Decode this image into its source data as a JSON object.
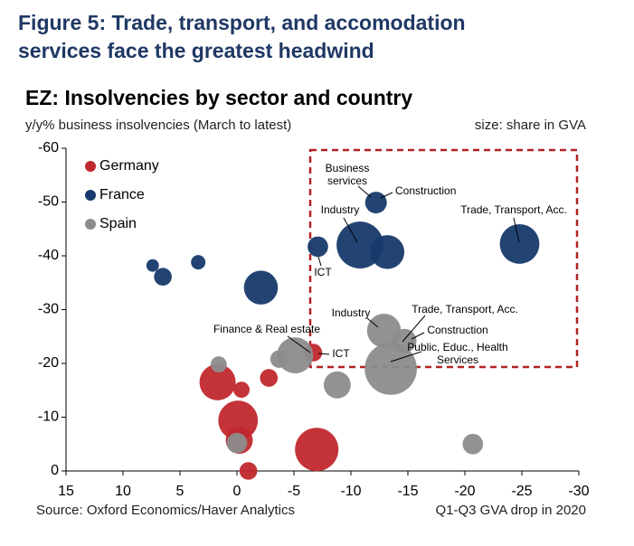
{
  "figure_title": [
    "Figure 5: Trade, transport, and accomodation",
    "services face the greatest headwind"
  ],
  "chart_data": {
    "type": "bubble",
    "title": "EZ: Insolvencies by sector and country",
    "y_label": "y/y% business insolvencies (March to latest)",
    "size_label": "size: share in GVA",
    "x_label": "Q1-Q3 GVA drop in 2020",
    "source": "Source: Oxford Economics/Haver Analytics",
    "xlim": [
      15,
      -30
    ],
    "ylim": [
      0,
      -60
    ],
    "xticks": [
      15,
      10,
      5,
      0,
      -5,
      -10,
      -15,
      -20,
      -25,
      -30
    ],
    "yticks": [
      -60,
      -50,
      -40,
      -30,
      -20,
      -10,
      0
    ],
    "legend": "top-left",
    "series": [
      {
        "name": "Germany",
        "color": "#c0282d",
        "x": [
          1.7,
          -0.1,
          -0.2,
          -0.4,
          -1.0,
          -2.8,
          -7.0,
          -6.7
        ],
        "values": [
          -16.5,
          -9.4,
          -5.7,
          -15.1,
          0,
          -17.3,
          -4.0,
          -22.0
        ],
        "sizes": [
          25,
          30,
          14,
          5,
          6,
          6,
          36,
          6
        ]
      },
      {
        "name": "France",
        "color": "#173a6c",
        "x": [
          7.4,
          6.5,
          3.4,
          -2.1,
          -7.1,
          -10.8,
          -12.2,
          -13.2,
          -24.8
        ],
        "values": [
          -38.2,
          -36.1,
          -38.8,
          -34.1,
          -41.7,
          -42.0,
          -49.9,
          -40.7,
          -42.2
        ],
        "sizes": [
          3,
          6,
          4,
          22,
          8,
          42,
          9,
          22,
          30
        ]
      },
      {
        "name": "Spain",
        "color": "#8c8c8c",
        "x": [
          1.6,
          0,
          -3.7,
          -5.1,
          -8.8,
          -12.9,
          -14.7,
          -13.5,
          -20.7
        ],
        "values": [
          -19.8,
          -5.2,
          -20.8,
          -21.5,
          -16.0,
          -26.1,
          -24.2,
          -19.0,
          -5.0
        ],
        "sizes": [
          5,
          8,
          6,
          25,
          14,
          22,
          11,
          52,
          8
        ]
      }
    ],
    "annotations": [
      [
        "Business",
        "services"
      ],
      [
        "Construction"
      ],
      [
        "Industry"
      ],
      [
        "Trade, Transport, Acc."
      ],
      [
        "ICT"
      ],
      [
        "Finance & Real estate"
      ],
      [
        "ICT"
      ],
      [
        "Industry"
      ],
      [
        "Trade, Transport, Acc."
      ],
      [
        "Construction"
      ],
      [
        "Public, Educ., Health",
        "Services"
      ]
    ]
  }
}
